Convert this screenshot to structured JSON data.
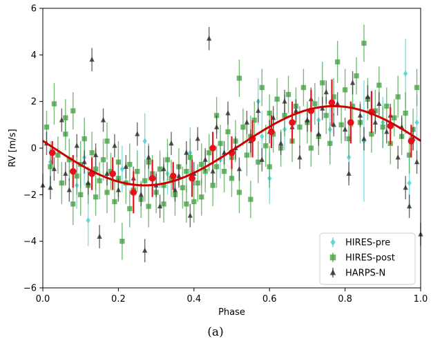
{
  "caption": "(a)",
  "chart_data": {
    "type": "scatter",
    "xlabel": "Phase",
    "ylabel": "RV [m/s]",
    "xlim": [
      0.0,
      1.0
    ],
    "ylim": [
      -6,
      6
    ],
    "xticks": [
      "0.0",
      "0.2",
      "0.4",
      "0.6",
      "0.8",
      "1.0"
    ],
    "yticks": [
      "−6",
      "−4",
      "−2",
      "0",
      "2",
      "4",
      "6"
    ],
    "grid": false,
    "legend_position": "bottom-right",
    "series": [
      {
        "name": "HIRES-pre",
        "marker": "diamond",
        "color": "#4ccfcf",
        "points": [
          [
            0.02,
            -0.6,
            0.9
          ],
          [
            0.09,
            -1.6,
            1.0
          ],
          [
            0.11,
            -0.4,
            1.2
          ],
          [
            0.12,
            -3.1,
            1.1
          ],
          [
            0.21,
            -0.9,
            1.0
          ],
          [
            0.27,
            0.3,
            1.2
          ],
          [
            0.33,
            -1.1,
            0.9
          ],
          [
            0.39,
            -0.2,
            1.1
          ],
          [
            0.47,
            -0.5,
            0.8
          ],
          [
            0.57,
            2.0,
            1.0
          ],
          [
            0.58,
            0.5,
            1.1
          ],
          [
            0.6,
            -1.3,
            1.1
          ],
          [
            0.64,
            0.8,
            0.9
          ],
          [
            0.73,
            1.2,
            1.0
          ],
          [
            0.76,
            0.8,
            1.1
          ],
          [
            0.81,
            -0.4,
            1.0
          ],
          [
            0.85,
            0.3,
            2.6
          ],
          [
            0.9,
            1.1,
            1.1
          ],
          [
            0.96,
            3.2,
            1.5
          ],
          [
            0.97,
            -1.5,
            1.1
          ],
          [
            0.99,
            1.1,
            1.2
          ]
        ]
      },
      {
        "name": "HIRES-post",
        "marker": "square",
        "color": "#3d9e3d",
        "points": [
          [
            0.01,
            0.9,
            0.7
          ],
          [
            0.02,
            -0.8,
            0.8
          ],
          [
            0.03,
            1.9,
            0.9
          ],
          [
            0.04,
            -0.3,
            0.8
          ],
          [
            0.05,
            -1.5,
            0.9
          ],
          [
            0.06,
            0.6,
            0.7
          ],
          [
            0.06,
            1.3,
            0.8
          ],
          [
            0.07,
            -0.5,
            0.9
          ],
          [
            0.08,
            1.6,
            0.8
          ],
          [
            0.08,
            -2.4,
            0.9
          ],
          [
            0.09,
            -1.2,
            0.8
          ],
          [
            0.1,
            -0.7,
            1.0
          ],
          [
            0.1,
            -2.0,
            0.9
          ],
          [
            0.11,
            0.4,
            0.9
          ],
          [
            0.12,
            -1.6,
            0.8
          ],
          [
            0.13,
            -0.2,
            0.9
          ],
          [
            0.14,
            -2.1,
            0.8
          ],
          [
            0.14,
            -0.9,
            0.9
          ],
          [
            0.15,
            -1.4,
            0.8
          ],
          [
            0.16,
            -0.5,
            0.9
          ],
          [
            0.17,
            0.3,
            0.8
          ],
          [
            0.17,
            -1.9,
            0.9
          ],
          [
            0.18,
            -1.0,
            0.8
          ],
          [
            0.19,
            -2.3,
            0.9
          ],
          [
            0.2,
            -1.3,
            0.8
          ],
          [
            0.2,
            -0.6,
            0.9
          ],
          [
            0.21,
            -4.0,
            0.8
          ],
          [
            0.22,
            -1.5,
            0.9
          ],
          [
            0.23,
            -2.6,
            0.8
          ],
          [
            0.23,
            -0.7,
            0.9
          ],
          [
            0.24,
            -1.8,
            0.8
          ],
          [
            0.25,
            -1.0,
            0.9
          ],
          [
            0.26,
            -2.2,
            0.8
          ],
          [
            0.27,
            -1.4,
            0.9
          ],
          [
            0.28,
            -0.6,
            0.8
          ],
          [
            0.28,
            -2.5,
            0.9
          ],
          [
            0.29,
            -1.1,
            0.8
          ],
          [
            0.3,
            -1.9,
            0.9
          ],
          [
            0.31,
            -0.9,
            0.8
          ],
          [
            0.32,
            -1.6,
            0.9
          ],
          [
            0.32,
            -2.4,
            0.8
          ],
          [
            0.33,
            -0.5,
            0.9
          ],
          [
            0.34,
            -1.3,
            0.8
          ],
          [
            0.35,
            -2.0,
            0.9
          ],
          [
            0.36,
            -0.8,
            0.8
          ],
          [
            0.37,
            -1.7,
            0.9
          ],
          [
            0.38,
            -2.4,
            0.8
          ],
          [
            0.38,
            -1.0,
            0.9
          ],
          [
            0.39,
            -0.4,
            0.8
          ],
          [
            0.4,
            -2.3,
            0.9
          ],
          [
            0.41,
            -1.5,
            0.8
          ],
          [
            0.42,
            -0.7,
            0.9
          ],
          [
            0.42,
            -2.1,
            0.8
          ],
          [
            0.43,
            -1.0,
            0.9
          ],
          [
            0.44,
            -0.2,
            0.8
          ],
          [
            0.45,
            -1.6,
            0.9
          ],
          [
            0.46,
            1.4,
            0.8
          ],
          [
            0.46,
            -0.8,
            0.9
          ],
          [
            0.47,
            0.2,
            0.8
          ],
          [
            0.48,
            -1.0,
            0.9
          ],
          [
            0.49,
            0.7,
            0.8
          ],
          [
            0.5,
            -0.4,
            0.9
          ],
          [
            0.5,
            -1.3,
            0.8
          ],
          [
            0.51,
            0.3,
            0.9
          ],
          [
            0.52,
            3.0,
            0.8
          ],
          [
            0.52,
            -1.9,
            0.9
          ],
          [
            0.53,
            0.9,
            0.8
          ],
          [
            0.54,
            -0.3,
            0.9
          ],
          [
            0.55,
            -2.2,
            0.8
          ],
          [
            0.55,
            0.5,
            0.9
          ],
          [
            0.56,
            1.2,
            0.8
          ],
          [
            0.57,
            -0.6,
            0.9
          ],
          [
            0.58,
            2.6,
            0.8
          ],
          [
            0.59,
            0.1,
            0.9
          ],
          [
            0.6,
            1.5,
            0.8
          ],
          [
            0.6,
            -0.8,
            0.9
          ],
          [
            0.61,
            0.6,
            0.8
          ],
          [
            0.62,
            2.1,
            0.9
          ],
          [
            0.63,
            0.0,
            0.8
          ],
          [
            0.64,
            1.4,
            0.9
          ],
          [
            0.65,
            2.3,
            0.8
          ],
          [
            0.66,
            0.3,
            0.9
          ],
          [
            0.67,
            1.8,
            0.8
          ],
          [
            0.68,
            0.9,
            0.9
          ],
          [
            0.69,
            2.6,
            0.8
          ],
          [
            0.7,
            1.1,
            0.9
          ],
          [
            0.71,
            0.0,
            0.8
          ],
          [
            0.72,
            1.9,
            0.9
          ],
          [
            0.73,
            0.5,
            0.8
          ],
          [
            0.74,
            2.8,
            0.9
          ],
          [
            0.75,
            1.4,
            0.8
          ],
          [
            0.76,
            0.2,
            0.9
          ],
          [
            0.77,
            2.2,
            0.8
          ],
          [
            0.78,
            3.7,
            0.9
          ],
          [
            0.79,
            1.0,
            0.8
          ],
          [
            0.8,
            2.5,
            0.9
          ],
          [
            0.81,
            0.4,
            0.8
          ],
          [
            0.82,
            1.8,
            0.9
          ],
          [
            0.83,
            3.1,
            0.8
          ],
          [
            0.84,
            1.1,
            0.9
          ],
          [
            0.85,
            4.5,
            0.8
          ],
          [
            0.86,
            2.1,
            0.9
          ],
          [
            0.87,
            0.6,
            0.8
          ],
          [
            0.88,
            1.6,
            0.9
          ],
          [
            0.89,
            2.7,
            0.8
          ],
          [
            0.9,
            0.9,
            0.9
          ],
          [
            0.91,
            1.8,
            0.8
          ],
          [
            0.92,
            0.2,
            0.9
          ],
          [
            0.93,
            1.3,
            0.8
          ],
          [
            0.94,
            2.2,
            0.9
          ],
          [
            0.95,
            0.5,
            0.8
          ],
          [
            0.96,
            1.5,
            0.9
          ],
          [
            0.97,
            -0.3,
            0.8
          ],
          [
            0.98,
            0.8,
            0.9
          ],
          [
            0.99,
            2.6,
            0.8
          ]
        ]
      },
      {
        "name": "HARPS-N",
        "marker": "triangle",
        "color": "#2b2b2b",
        "points": [
          [
            0.0,
            -1.6,
            0.5
          ],
          [
            0.01,
            0.2,
            0.5
          ],
          [
            0.02,
            -1.7,
            0.5
          ],
          [
            0.03,
            -0.9,
            0.5
          ],
          [
            0.05,
            1.2,
            0.5
          ],
          [
            0.06,
            -1.1,
            0.5
          ],
          [
            0.07,
            -1.8,
            0.5
          ],
          [
            0.09,
            0.1,
            0.5
          ],
          [
            0.11,
            -0.6,
            0.5
          ],
          [
            0.12,
            -1.5,
            0.5
          ],
          [
            0.13,
            3.8,
            0.5
          ],
          [
            0.14,
            -0.3,
            0.5
          ],
          [
            0.15,
            -3.8,
            0.5
          ],
          [
            0.16,
            1.2,
            0.5
          ],
          [
            0.17,
            -1.1,
            0.5
          ],
          [
            0.19,
            0.1,
            0.5
          ],
          [
            0.2,
            -1.8,
            0.5
          ],
          [
            0.22,
            -0.8,
            0.5
          ],
          [
            0.24,
            -1.3,
            0.5
          ],
          [
            0.25,
            0.6,
            0.5
          ],
          [
            0.26,
            -2.0,
            0.5
          ],
          [
            0.27,
            -4.4,
            0.5
          ],
          [
            0.28,
            -0.4,
            0.5
          ],
          [
            0.3,
            -1.6,
            0.5
          ],
          [
            0.31,
            -2.5,
            0.5
          ],
          [
            0.32,
            -0.9,
            0.5
          ],
          [
            0.34,
            0.2,
            0.5
          ],
          [
            0.35,
            -1.8,
            0.5
          ],
          [
            0.36,
            -1.2,
            0.5
          ],
          [
            0.38,
            -0.2,
            0.5
          ],
          [
            0.39,
            -2.9,
            0.5
          ],
          [
            0.4,
            -1.1,
            0.5
          ],
          [
            0.41,
            0.4,
            0.5
          ],
          [
            0.43,
            -0.5,
            0.5
          ],
          [
            0.44,
            4.7,
            0.5
          ],
          [
            0.45,
            -1.0,
            0.5
          ],
          [
            0.46,
            0.9,
            0.5
          ],
          [
            0.48,
            -0.2,
            0.5
          ],
          [
            0.49,
            1.5,
            0.5
          ],
          [
            0.51,
            0.0,
            0.5
          ],
          [
            0.52,
            -0.9,
            0.5
          ],
          [
            0.54,
            1.1,
            0.5
          ],
          [
            0.55,
            0.3,
            0.5
          ],
          [
            0.57,
            1.6,
            0.5
          ],
          [
            0.58,
            -0.5,
            0.5
          ],
          [
            0.6,
            0.7,
            0.5
          ],
          [
            0.61,
            1.3,
            0.5
          ],
          [
            0.63,
            0.2,
            0.5
          ],
          [
            0.64,
            2.0,
            0.5
          ],
          [
            0.66,
            0.9,
            0.5
          ],
          [
            0.67,
            1.6,
            0.5
          ],
          [
            0.68,
            -0.4,
            0.5
          ],
          [
            0.7,
            1.2,
            0.5
          ],
          [
            0.71,
            2.1,
            0.5
          ],
          [
            0.73,
            0.6,
            0.5
          ],
          [
            0.74,
            1.7,
            0.5
          ],
          [
            0.75,
            2.4,
            0.5
          ],
          [
            0.77,
            1.0,
            0.5
          ],
          [
            0.78,
            1.9,
            0.5
          ],
          [
            0.8,
            0.8,
            0.5
          ],
          [
            0.81,
            -1.1,
            0.5
          ],
          [
            0.82,
            2.8,
            0.5
          ],
          [
            0.84,
            1.4,
            0.5
          ],
          [
            0.85,
            0.4,
            0.5
          ],
          [
            0.86,
            2.2,
            0.5
          ],
          [
            0.88,
            1.1,
            0.5
          ],
          [
            0.89,
            1.9,
            0.5
          ],
          [
            0.91,
            0.7,
            0.5
          ],
          [
            0.92,
            1.4,
            0.5
          ],
          [
            0.94,
            -0.4,
            0.5
          ],
          [
            0.95,
            0.9,
            0.5
          ],
          [
            0.96,
            -1.7,
            0.5
          ],
          [
            0.97,
            -2.5,
            0.5
          ],
          [
            0.98,
            0.4,
            0.5
          ],
          [
            0.99,
            -0.6,
            0.5
          ],
          [
            1.0,
            -3.7,
            0.5
          ]
        ]
      },
      {
        "name": "",
        "marker": "circle",
        "color": "#e8101a",
        "points": [
          [
            0.025,
            -0.2,
            0.5
          ],
          [
            0.08,
            -1.0,
            0.7
          ],
          [
            0.13,
            -1.1,
            0.7
          ],
          [
            0.185,
            -1.1,
            0.7
          ],
          [
            0.24,
            -1.9,
            0.9
          ],
          [
            0.29,
            -1.3,
            0.8
          ],
          [
            0.345,
            -1.2,
            0.6
          ],
          [
            0.395,
            -1.3,
            0.8
          ],
          [
            0.45,
            0.0,
            0.7
          ],
          [
            0.5,
            -0.2,
            0.7
          ],
          [
            0.555,
            0.4,
            0.8
          ],
          [
            0.605,
            0.7,
            0.7
          ],
          [
            0.66,
            1.1,
            0.9
          ],
          [
            0.71,
            1.6,
            0.9
          ],
          [
            0.765,
            1.95,
            1.0
          ],
          [
            0.815,
            1.1,
            0.9
          ],
          [
            0.87,
            1.55,
            0.9
          ],
          [
            0.92,
            0.95,
            0.8
          ],
          [
            0.975,
            0.3,
            0.7
          ]
        ]
      }
    ],
    "model_curve": {
      "color": "#cc0000",
      "shape": "sinusoid",
      "offset": 0.1,
      "amplitude": 1.7,
      "phase_of_maximum": 0.77,
      "period_in_phase": 1.0
    }
  }
}
